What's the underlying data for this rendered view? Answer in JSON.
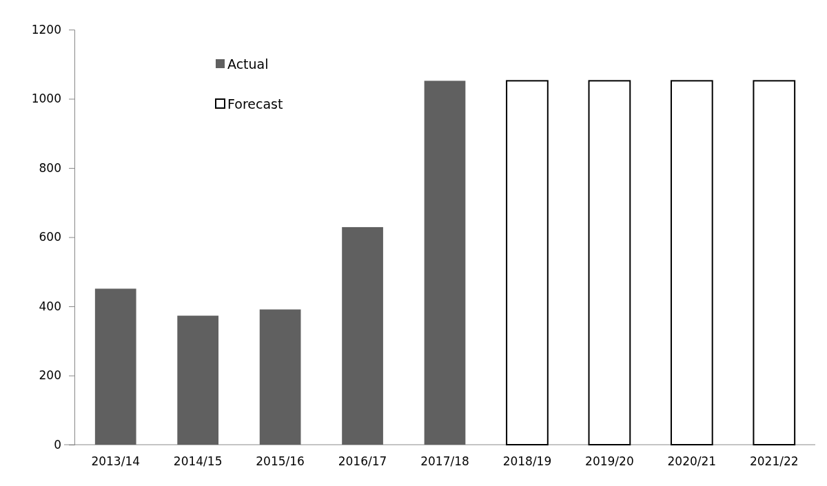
{
  "chart_data": {
    "type": "bar",
    "categories": [
      "2013/14",
      "2014/15",
      "2015/16",
      "2016/17",
      "2017/18",
      "2018/19",
      "2019/20",
      "2020/21",
      "2021/22"
    ],
    "series": [
      {
        "name": "Actual",
        "color": "#606060",
        "values": [
          451,
          373,
          391,
          629,
          1052,
          null,
          null,
          null,
          null
        ]
      },
      {
        "name": "Forecast",
        "color": "#ffffff",
        "values": [
          null,
          null,
          null,
          null,
          null,
          1052,
          1052,
          1052,
          1052
        ]
      }
    ],
    "ylim": [
      0,
      1200
    ],
    "yticks": [
      0,
      200,
      400,
      600,
      800,
      1000,
      1200
    ],
    "grid": false,
    "legend": "top left"
  }
}
